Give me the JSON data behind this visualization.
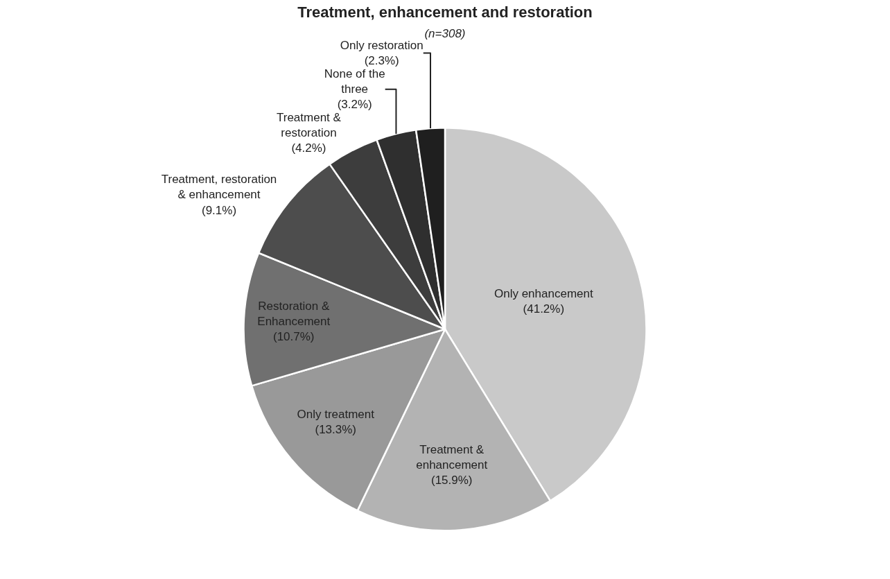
{
  "chart_data": {
    "type": "pie",
    "title": "Treatment, enhancement and restoration",
    "subtitle": "(n=308)",
    "categories": [
      "Only enhancement",
      "Treatment &\nenhancement",
      "Only treatment",
      "Restoration &\nEnhancement",
      "Treatment, restoration\n& enhancement",
      "Treatment &\nrestoration",
      "None of the\nthree",
      "Only restoration"
    ],
    "values": [
      41.2,
      15.9,
      13.3,
      10.7,
      9.1,
      4.2,
      3.2,
      2.3
    ],
    "value_labels": [
      "(41.2%)",
      "(15.9%)",
      "(13.3%)",
      "(10.7%)",
      "(9.1%)",
      "(4.2%)",
      "(3.2%)",
      "(2.3%)"
    ],
    "colors": [
      "#c9c9c9",
      "#b3b3b3",
      "#999999",
      "#707070",
      "#4d4d4d",
      "#3d3d3d",
      "#2f2f2f",
      "#1f1f1f"
    ],
    "legend": false
  }
}
